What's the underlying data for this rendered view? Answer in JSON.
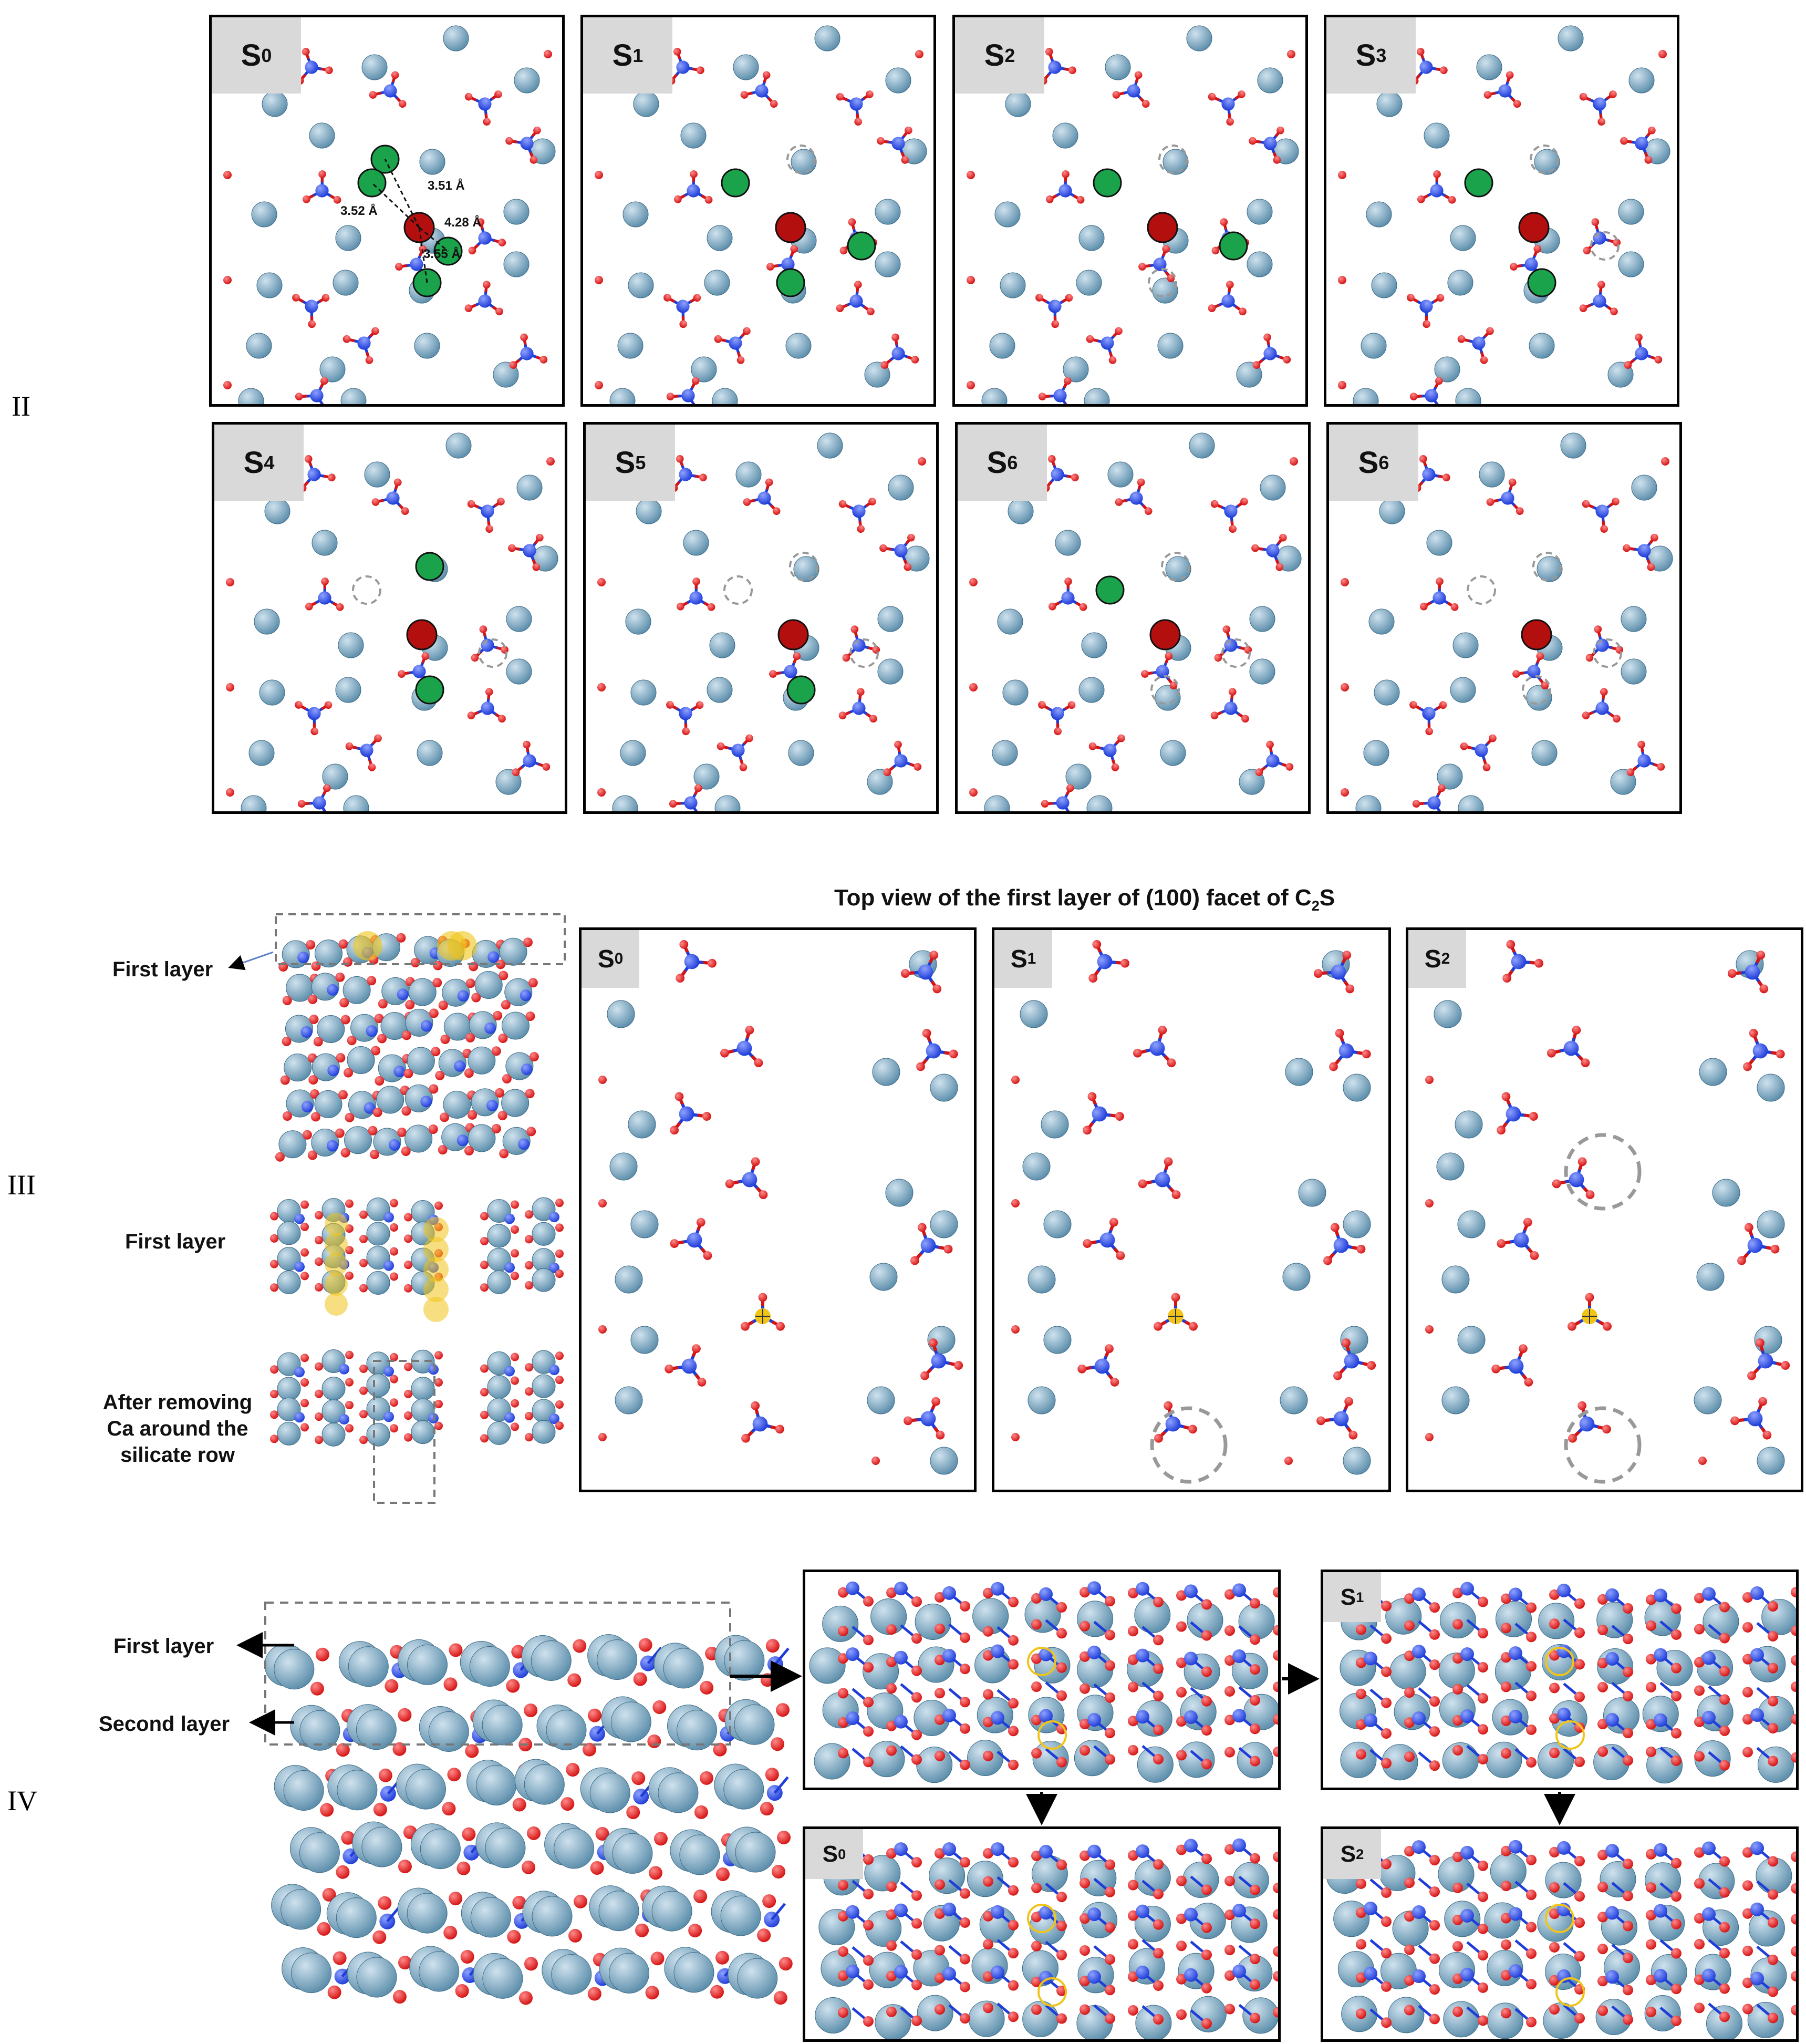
{
  "section_labels": {
    "ii": "II",
    "iii": "III",
    "iv": "IV"
  },
  "colors": {
    "ca": "#5e8fac",
    "si": "#1f3ed8",
    "o": "#d41313",
    "removed_marked": "#1aa34a",
    "center_marked": "#b30f0f",
    "highlight": "#f0c419"
  },
  "section_ii": {
    "row1": [
      {
        "state": "S",
        "sub": "0"
      },
      {
        "state": "S",
        "sub": "1"
      },
      {
        "state": "S",
        "sub": "2"
      },
      {
        "state": "S",
        "sub": "3"
      }
    ],
    "row2": [
      {
        "state": "S",
        "sub": "4"
      },
      {
        "state": "S",
        "sub": "5"
      },
      {
        "state": "S",
        "sub": "6"
      },
      {
        "state": "S",
        "sub": "6"
      }
    ],
    "distances": {
      "d1": "3.51 Å",
      "d2": "3.52 Å",
      "d3": "4.28 Å",
      "d4": "3.55 Å"
    }
  },
  "section_iii": {
    "title": "Top view of the first layer of (100) facet of C",
    "title_sub": "2",
    "title_suffix": "S",
    "side_labels": {
      "first_layer_arrow": "First layer",
      "first_layer": "First layer",
      "after_removing_1": "After removing",
      "after_removing_2": "Ca around the",
      "after_removing_3": "silicate row"
    },
    "panels": [
      {
        "state": "S",
        "sub": "0"
      },
      {
        "state": "S",
        "sub": "1"
      },
      {
        "state": "S",
        "sub": "2"
      }
    ]
  },
  "section_iv": {
    "first_layer": "First layer",
    "second_layer": "Second layer",
    "panels": [
      {
        "state": "S",
        "sub": "1"
      },
      {
        "state": "S",
        "sub": "0"
      },
      {
        "state": "S",
        "sub": "2"
      }
    ]
  }
}
